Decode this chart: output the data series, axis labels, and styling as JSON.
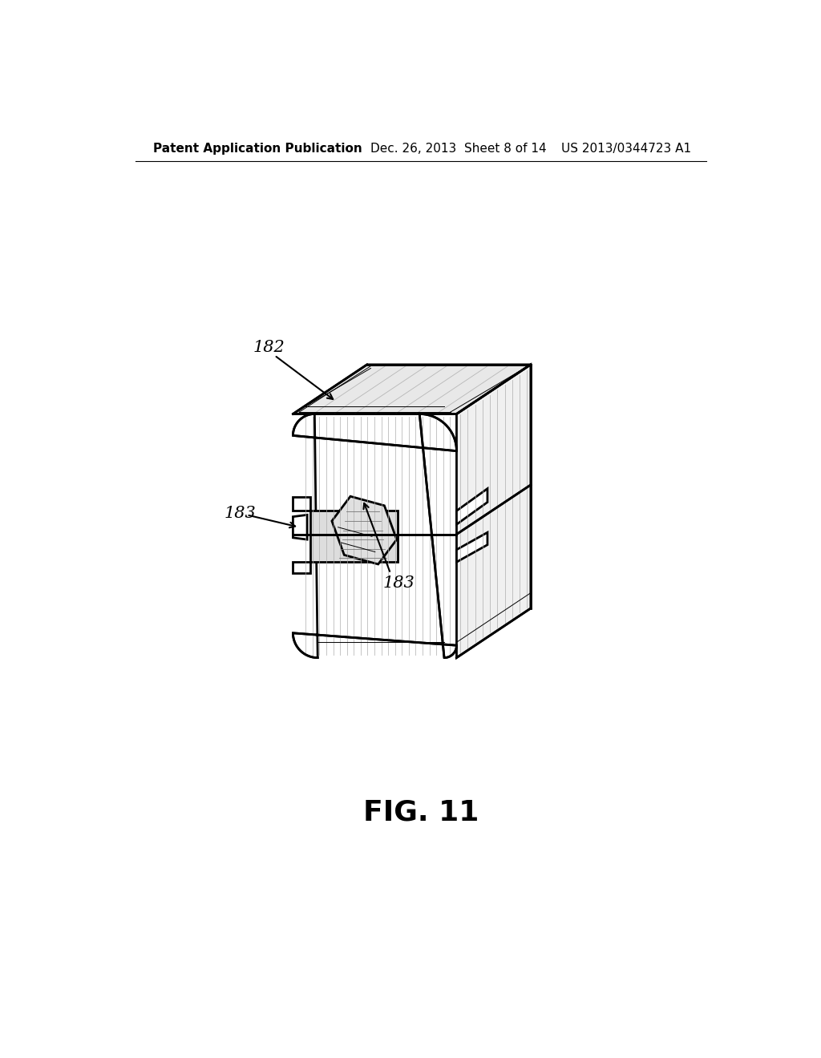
{
  "background_color": "#ffffff",
  "line_color": "#000000",
  "header_left": "Patent Application Publication",
  "header_center": "Dec. 26, 2013  Sheet 8 of 14",
  "header_right": "US 2013/0344723 A1",
  "fig_label": "FIG. 11",
  "label_182": "182",
  "label_183_left": "183",
  "label_183_bot": "183",
  "fig_label_fontsize": 26,
  "header_fontsize": 11,
  "annotation_fontsize": 13
}
